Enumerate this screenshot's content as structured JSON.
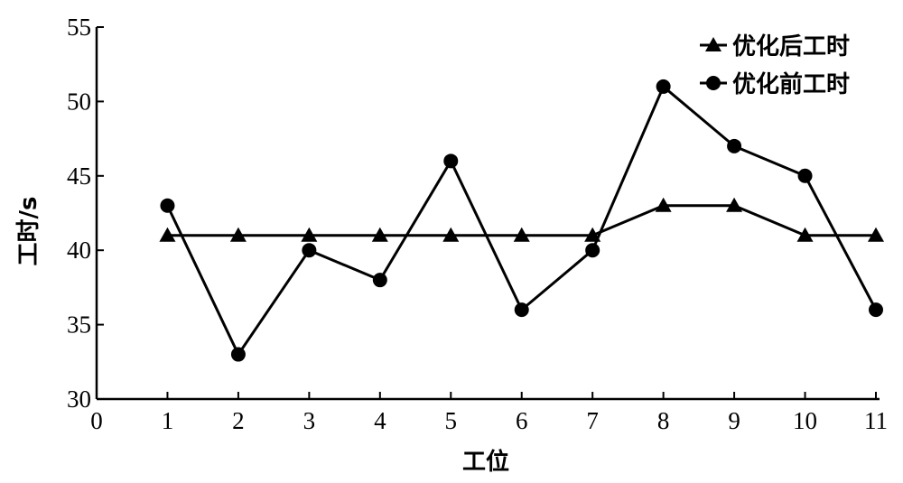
{
  "chart_data": {
    "type": "line",
    "x": [
      1,
      2,
      3,
      4,
      5,
      6,
      7,
      8,
      9,
      10,
      11
    ],
    "series": [
      {
        "name": "优化后工时",
        "color": "#000000",
        "marker": "triangle",
        "values": [
          41,
          41,
          41,
          41,
          41,
          41,
          41,
          43,
          43,
          41,
          41
        ]
      },
      {
        "name": "优化前工时",
        "color": "#000000",
        "marker": "circle",
        "values": [
          43,
          33,
          40,
          38,
          46,
          36,
          40,
          51,
          47,
          45,
          36
        ]
      }
    ],
    "xlabel": "工位",
    "ylabel": "工时/s",
    "xlim": [
      0,
      11
    ],
    "xticks": [
      0,
      1,
      2,
      3,
      4,
      5,
      6,
      7,
      8,
      9,
      10,
      11
    ],
    "ylim": [
      30,
      55
    ],
    "yticks": [
      30,
      35,
      40,
      45,
      50,
      55
    ],
    "legend": "upper right",
    "grid": false
  }
}
